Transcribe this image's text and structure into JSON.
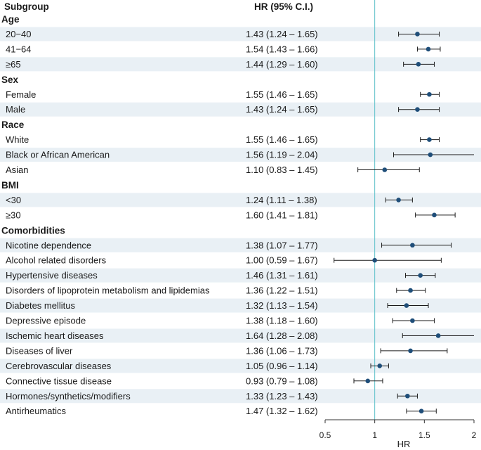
{
  "chart_data": {
    "type": "forest",
    "header": {
      "subgroup": "Subgroup",
      "hr": "HR (95% C.I.)"
    },
    "xlabel": "HR",
    "xlim": [
      0.5,
      2
    ],
    "xticks": [
      0.5,
      1,
      1.5,
      2
    ],
    "xtick_labels": [
      "0.5",
      "1",
      "1.5",
      "2"
    ],
    "reference_line": 1,
    "colors": {
      "point": "#1f4e79",
      "reference": "#5bc0c8",
      "band": "#e9f0f5",
      "whisker": "#1a1a1a"
    },
    "rows": [
      {
        "type": "group",
        "label": "Age"
      },
      {
        "type": "item",
        "label": "20−40",
        "ci_text": "1.43 (1.24 – 1.65)",
        "hr": 1.43,
        "lo": 1.24,
        "hi": 1.65
      },
      {
        "type": "item",
        "label": "41−64",
        "ci_text": "1.54 (1.43 – 1.66)",
        "hr": 1.54,
        "lo": 1.43,
        "hi": 1.66
      },
      {
        "type": "item",
        "label": "≥65",
        "ci_text": "1.44 (1.29 – 1.60)",
        "hr": 1.44,
        "lo": 1.29,
        "hi": 1.6
      },
      {
        "type": "group",
        "label": "Sex"
      },
      {
        "type": "item",
        "label": "Female",
        "ci_text": "1.55 (1.46 – 1.65)",
        "hr": 1.55,
        "lo": 1.46,
        "hi": 1.65
      },
      {
        "type": "item",
        "label": "Male",
        "ci_text": "1.43 (1.24 – 1.65)",
        "hr": 1.43,
        "lo": 1.24,
        "hi": 1.65
      },
      {
        "type": "group",
        "label": "Race"
      },
      {
        "type": "item",
        "label": "White",
        "ci_text": "1.55 (1.46 – 1.65)",
        "hr": 1.55,
        "lo": 1.46,
        "hi": 1.65
      },
      {
        "type": "item",
        "label": "Black or African American",
        "ci_text": "1.56 (1.19 – 2.04)",
        "hr": 1.56,
        "lo": 1.19,
        "hi": 2.04
      },
      {
        "type": "item",
        "label": "Asian",
        "ci_text": "1.10 (0.83 – 1.45)",
        "hr": 1.1,
        "lo": 0.83,
        "hi": 1.45
      },
      {
        "type": "group",
        "label": "BMI"
      },
      {
        "type": "item",
        "label": "<30",
        "ci_text": "1.24 (1.11 – 1.38)",
        "hr": 1.24,
        "lo": 1.11,
        "hi": 1.38
      },
      {
        "type": "item",
        "label": "≥30",
        "ci_text": "1.60 (1.41 – 1.81)",
        "hr": 1.6,
        "lo": 1.41,
        "hi": 1.81
      },
      {
        "type": "group",
        "label": "Comorbidities"
      },
      {
        "type": "item",
        "label": "Nicotine dependence",
        "ci_text": "1.38 (1.07 – 1.77)",
        "hr": 1.38,
        "lo": 1.07,
        "hi": 1.77
      },
      {
        "type": "item",
        "label": "Alcohol related disorders",
        "ci_text": "1.00 (0.59 – 1.67)",
        "hr": 1.0,
        "lo": 0.59,
        "hi": 1.67
      },
      {
        "type": "item",
        "label": "Hypertensive diseases",
        "ci_text": "1.46 (1.31 – 1.61)",
        "hr": 1.46,
        "lo": 1.31,
        "hi": 1.61
      },
      {
        "type": "item",
        "label": "Disorders of lipoprotein metabolism and lipidemias",
        "ci_text": "1.36 (1.22 – 1.51)",
        "hr": 1.36,
        "lo": 1.22,
        "hi": 1.51
      },
      {
        "type": "item",
        "label": "Diabetes mellitus",
        "ci_text": "1.32 (1.13 – 1.54)",
        "hr": 1.32,
        "lo": 1.13,
        "hi": 1.54
      },
      {
        "type": "item",
        "label": "Depressive episode",
        "ci_text": "1.38 (1.18 – 1.60)",
        "hr": 1.38,
        "lo": 1.18,
        "hi": 1.6
      },
      {
        "type": "item",
        "label": "Ischemic heart diseases",
        "ci_text": "1.64 (1.28 – 2.08)",
        "hr": 1.64,
        "lo": 1.28,
        "hi": 2.08
      },
      {
        "type": "item",
        "label": "Diseases of liver",
        "ci_text": "1.36 (1.06 – 1.73)",
        "hr": 1.36,
        "lo": 1.06,
        "hi": 1.73
      },
      {
        "type": "item",
        "label": "Cerebrovascular diseases",
        "ci_text": "1.05 (0.96 – 1.14)",
        "hr": 1.05,
        "lo": 0.96,
        "hi": 1.14
      },
      {
        "type": "item",
        "label": "Connective tissue disease",
        "ci_text": "0.93 (0.79 – 1.08)",
        "hr": 0.93,
        "lo": 0.79,
        "hi": 1.08
      },
      {
        "type": "item",
        "label": "Hormones/synthetics/modifiers",
        "ci_text": "1.33 (1.23 – 1.43)",
        "hr": 1.33,
        "lo": 1.23,
        "hi": 1.43
      },
      {
        "type": "item",
        "label": "Antirheumatics",
        "ci_text": "1.47 (1.32 – 1.62)",
        "hr": 1.47,
        "lo": 1.32,
        "hi": 1.62
      }
    ]
  }
}
